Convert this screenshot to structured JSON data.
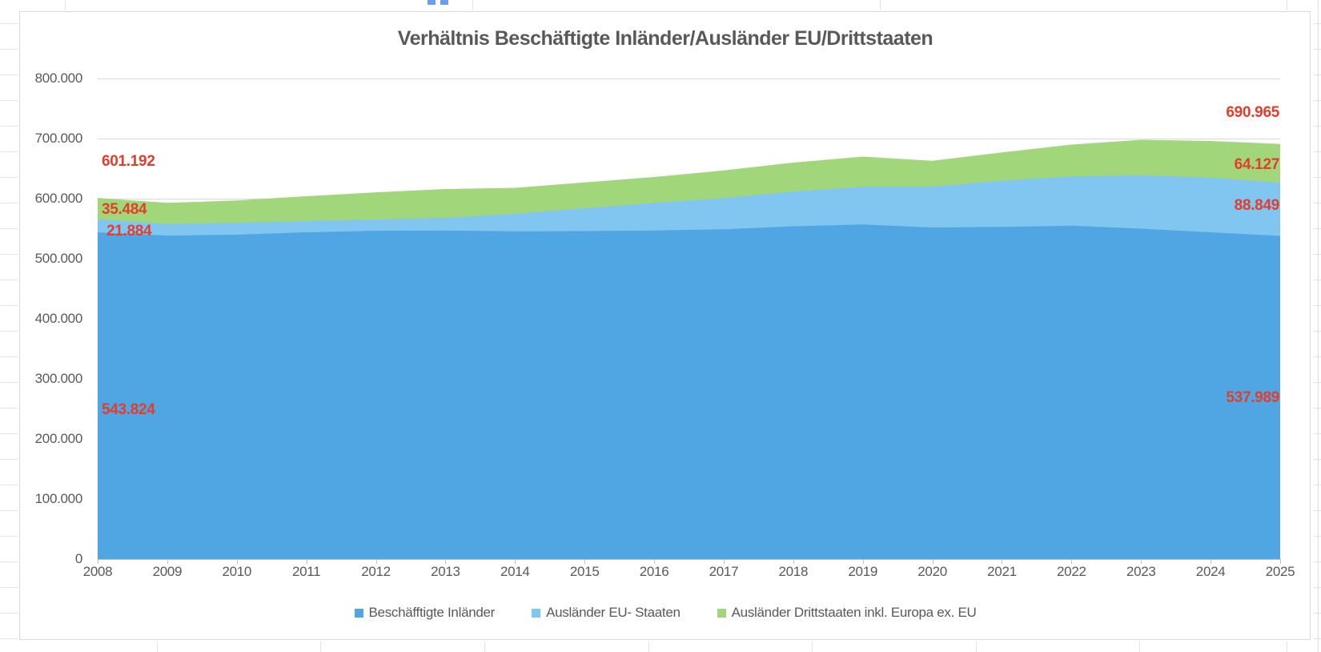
{
  "title": "Verhältnis Beschäftigte Inländer/Ausländer EU/Drittstaaten",
  "chart_data": {
    "type": "area",
    "stacked": true,
    "title": "Verhältnis Beschäftigte Inländer/Ausländer EU/Drittstaaten",
    "categories": [
      "2008",
      "2009",
      "2010",
      "2011",
      "2012",
      "2013",
      "2014",
      "2015",
      "2016",
      "2017",
      "2018",
      "2019",
      "2020",
      "2021",
      "2022",
      "2023",
      "2024",
      "2025"
    ],
    "series": [
      {
        "name": "Beschäfftigte Inländer",
        "color": "#4FA6E2",
        "values": [
          543824,
          538500,
          540000,
          544000,
          546500,
          547000,
          545500,
          546000,
          547000,
          549000,
          554000,
          557000,
          552000,
          553000,
          555000,
          550000,
          544000,
          537989
        ]
      },
      {
        "name": "Ausländer EU- Staaten",
        "color": "#81C6F0",
        "values": [
          21884,
          19500,
          20000,
          19000,
          19000,
          21000,
          29500,
          38000,
          46000,
          52000,
          58000,
          63000,
          68000,
          77000,
          82000,
          89000,
          91000,
          88849
        ]
      },
      {
        "name": "Ausländer Drittstaaten inkl. Europa ex. EU",
        "color": "#A2D67B",
        "values": [
          35484,
          35000,
          37000,
          41000,
          45000,
          48000,
          43000,
          43000,
          43000,
          46000,
          48000,
          50000,
          43000,
          47000,
          53000,
          59000,
          61000,
          64127
        ]
      }
    ],
    "xlabel": "",
    "ylabel": "",
    "ylim": [
      0,
      800000
    ],
    "y_ticks": [
      "800.000",
      "700.000",
      "600.000",
      "500.000",
      "400.000",
      "300.000",
      "200.000",
      "100.000",
      "0"
    ],
    "grid": true,
    "legend_position": "bottom"
  },
  "data_labels": {
    "left": {
      "total": "601.192",
      "drittstaaten": "35.484",
      "eu": "21.884",
      "inlaender": "543.824"
    },
    "right": {
      "total": "690.965",
      "drittstaaten": "64.127",
      "eu": "88.849",
      "inlaender": "537.989"
    }
  },
  "colors": {
    "label_red": "#E23E2B",
    "axis_text": "#595959",
    "gridline": "#D9D9D9",
    "axis_line": "#BFBFBF",
    "selection_handle_blue": "#6B9FEA"
  }
}
